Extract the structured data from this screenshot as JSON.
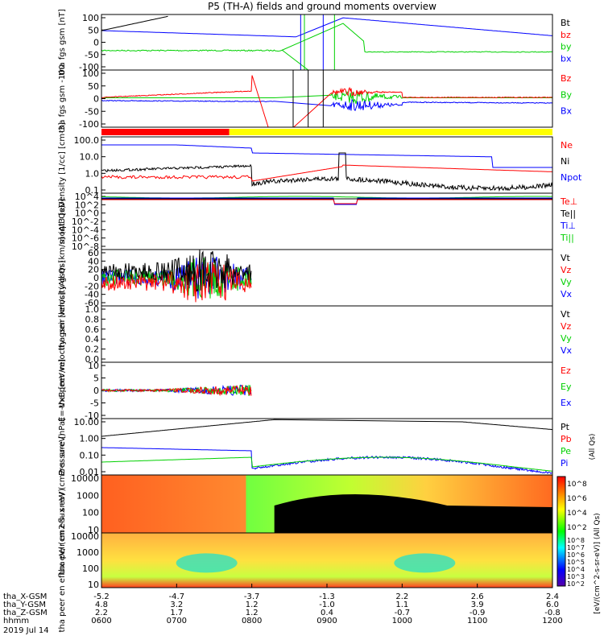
{
  "title": "P5 (TH-A) fields and ground moments overview",
  "date": "2019 Jul 14",
  "colors": {
    "black": "#000000",
    "red": "#ff0000",
    "green": "#00d000",
    "blue": "#0000ff",
    "yellow": "#ffff00"
  },
  "time_axis": {
    "rows": [
      {
        "label": "tha_X-GSM",
        "values": [
          "-5.2",
          "-4.7",
          "-3.7",
          "-1.3",
          "2.2",
          "2.6",
          "2.4"
        ]
      },
      {
        "label": "tha_Y-GSM",
        "values": [
          "4.8",
          "3.2",
          "1.2",
          "-1.0",
          "1.1",
          "3.9",
          "6.0"
        ]
      },
      {
        "label": "tha_Z-GSM",
        "values": [
          "2.2",
          "1.7",
          "1.2",
          "0.4",
          "-0.7",
          "-0.9",
          "-0.8"
        ]
      },
      {
        "label": "hhmm",
        "values": [
          "0600",
          "0700",
          "0800",
          "0900",
          "1000",
          "1100",
          "1200"
        ]
      }
    ]
  },
  "chart_data": [
    {
      "type": "line",
      "id": "fgs",
      "ylabel": "tha fgs gsm [nT]",
      "ylim": [
        -100,
        100
      ],
      "yticks": [
        "100",
        "50",
        "0",
        "-50",
        "-100"
      ],
      "legend": [
        "Bt",
        "bz",
        "by",
        "bx"
      ],
      "legend_colors": [
        "#000000",
        "#ff0000",
        "#00d000",
        "#0000ff"
      ]
    },
    {
      "type": "line",
      "id": "fgs_gse",
      "ylabel": "tha fgs gsm -100",
      "ylim": [
        -120,
        120
      ],
      "yticks": [
        "100",
        "50",
        "0",
        "-50",
        "-100"
      ],
      "legend": [
        "Bz",
        "By",
        "Bx"
      ],
      "legend_colors": [
        "#ff0000",
        "#00d000",
        "#0000ff"
      ]
    },
    {
      "type": "bar",
      "id": "mode",
      "segments": [
        {
          "x": [
            6.0,
            7.7
          ],
          "color": "#ff0000"
        },
        {
          "x": [
            7.7,
            12.0
          ],
          "color": "#ffff00"
        }
      ]
    },
    {
      "type": "line",
      "id": "density",
      "ylabel": "Density [1/cc] [cm-3]",
      "scale": "log",
      "yticks": [
        "100.0",
        "10.0",
        "1.0",
        "0.1"
      ],
      "legend": [
        "Ne",
        "Ni",
        "Npot"
      ],
      "legend_colors": [
        "#ff0000",
        "#000000",
        "#0000ff"
      ]
    },
    {
      "type": "line",
      "id": "temp",
      "ylabel": "moqt3 [eV]",
      "scale": "log",
      "yticks": [
        "10^4",
        "10^2",
        "10^0",
        "10^-2",
        "10^-4",
        "10^-6",
        "10^-8"
      ],
      "legend": [
        "Te⊥",
        "Te||",
        "Ti⊥",
        "Ti||"
      ],
      "legend_colors": [
        "#ff0000",
        "#000000",
        "#0000ff",
        "#00d000"
      ]
    },
    {
      "type": "line",
      "id": "peir_vel",
      "ylabel": "tha peir velocity gsm [km/s] (All Qs)",
      "ylim": [
        -60,
        60
      ],
      "yticks": [
        "60",
        "40",
        "20",
        "0",
        "-20",
        "-40",
        "-60"
      ],
      "legend": [
        "Vt",
        "Vz",
        "Vy",
        "Vx"
      ],
      "legend_colors": [
        "#000000",
        "#ff0000",
        "#00d000",
        "#0000ff"
      ]
    },
    {
      "type": "line",
      "id": "peer_vel",
      "ylabel": "tha peer velocity gsm [km/s] (All Qs)",
      "ylim": [
        0,
        1
      ],
      "yticks": [
        "1.0",
        "0.8",
        "0.6",
        "0.4",
        "0.2",
        "0.0"
      ],
      "legend": [
        "Vt",
        "Vz",
        "Vy",
        "Vx"
      ],
      "legend_colors": [
        "#000000",
        "#ff0000",
        "#00d000",
        "#0000ff"
      ]
    },
    {
      "type": "line",
      "id": "efield",
      "ylabel": "E=-VxB [mV/m]",
      "ylim": [
        -12,
        12
      ],
      "yticks": [
        "10",
        "5",
        "0",
        "-5",
        "-10"
      ],
      "legend": [
        "Ez",
        "Ey",
        "Ex"
      ],
      "legend_colors": [
        "#ff0000",
        "#00d000",
        "#0000ff"
      ]
    },
    {
      "type": "line",
      "id": "pressure",
      "ylabel": "Pressure [nPa]",
      "scale": "log",
      "yticks": [
        "10.00",
        "1.00",
        "0.10",
        "0.01"
      ],
      "legend": [
        "Pt",
        "Pb",
        "Pe",
        "Pi"
      ],
      "legend_colors": [
        "#000000",
        "#ff0000",
        "#00d000",
        "#0000ff"
      ],
      "legend_note": "(All Qs)"
    },
    {
      "type": "heatmap",
      "id": "peir_spec",
      "ylabel": "tha peir en eflux eV/ (cm2-s- sr-eV)",
      "scale": "log",
      "yticks": [
        "10000",
        "1000",
        "100",
        "10"
      ]
    },
    {
      "type": "heatmap",
      "id": "peer_spec",
      "ylabel": "tha peer en eflux eV/ (cm2-s- sr-eV)",
      "scale": "log",
      "yticks": [
        "10000",
        "1000",
        "100",
        "10"
      ]
    }
  ],
  "colorbar": {
    "label": "[eV/(cm^2-s-sr-eV)] (All Qs)",
    "ticks_top": [
      "10^8",
      "10^6",
      "10^4",
      "10^2"
    ],
    "ticks_bottom": [
      "10^8",
      "10^7",
      "10^6",
      "10^5",
      "10^4",
      "10^3",
      "10^2"
    ]
  }
}
